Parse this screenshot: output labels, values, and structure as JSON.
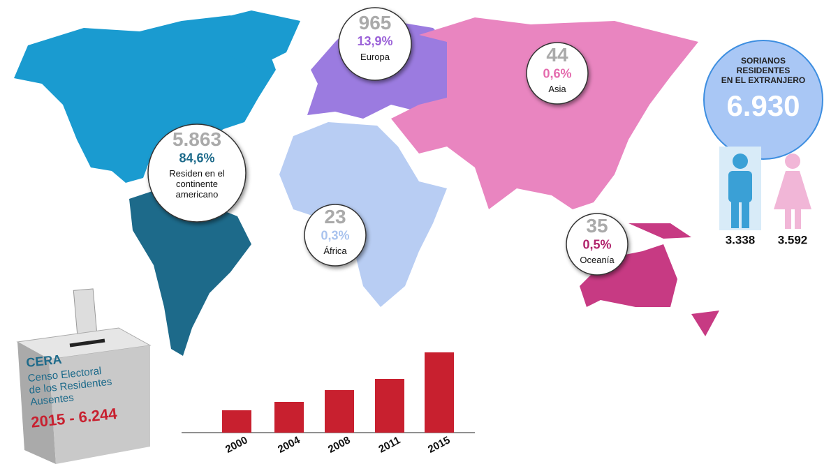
{
  "summary": {
    "title_lines": [
      "SORIANOS",
      "RESIDENTES",
      "EN EL EXTRANJERO"
    ],
    "total": "6.930",
    "men": "3.338",
    "women": "3.592"
  },
  "regions": [
    {
      "count": "5.863",
      "percent": "84,6%",
      "label_lines": [
        "Residen en el",
        "continente",
        "americano"
      ],
      "color": "#1d6a8a"
    },
    {
      "count": "965",
      "percent": "13,9%",
      "label_lines": [
        "Europa"
      ],
      "color": "#9b62d8"
    },
    {
      "count": "44",
      "percent": "0,6%",
      "label_lines": [
        "Asia"
      ],
      "color": "#e46aad"
    },
    {
      "count": "23",
      "percent": "0,3%",
      "label_lines": [
        "África"
      ],
      "color": "#a9c3ee"
    },
    {
      "count": "35",
      "percent": "0,5%",
      "label_lines": [
        "Oceanía"
      ],
      "color": "#b0246c"
    }
  ],
  "cera": {
    "title": "CERA",
    "lines": [
      "Censo Electoral",
      "de los Residentes",
      "Ausentes"
    ],
    "highlight": "2015 - 6.244"
  },
  "chart_data": {
    "type": "bar",
    "categories": [
      "2000",
      "2004",
      "2008",
      "2011",
      "2015"
    ],
    "values": [
      1740,
      2390,
      3310,
      4180,
      6244
    ],
    "color": "#c8202f"
  }
}
